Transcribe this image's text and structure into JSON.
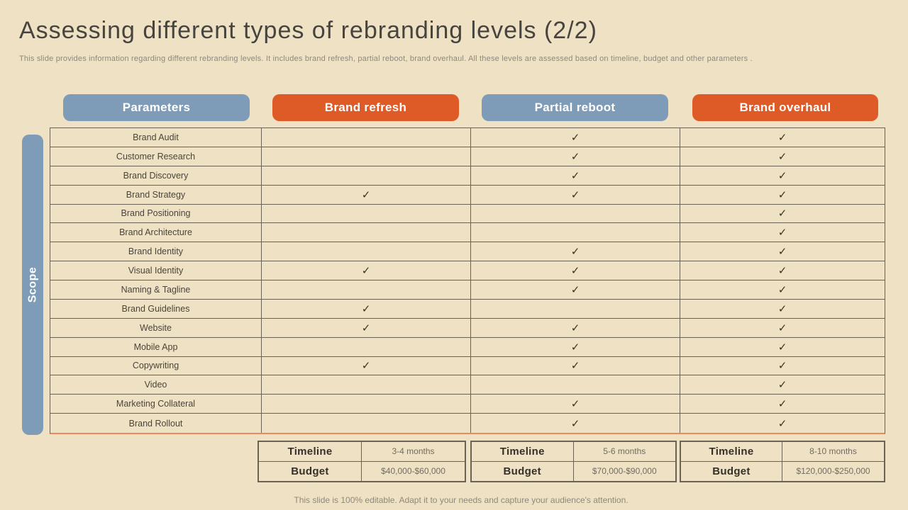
{
  "title": "Assessing different types of rebranding levels (2/2)",
  "subtitle": "This slide provides information regarding different rebranding levels. It includes brand refresh, partial reboot, brand overhaul. All these levels are assessed based on timeline,  budget and other parameters .",
  "scope_label": "Scope",
  "check_mark": "✓",
  "colors": {
    "background": "#EFE2C4",
    "blue_accent": "#7E9CB7",
    "orange_accent": "#DE5A26",
    "table_border": "#6B6455",
    "table_bottom_accent": "#E8895F",
    "title_text": "#474440",
    "muted_text": "#8E887B",
    "check_color": "#3B3223"
  },
  "columns": [
    {
      "label": "Parameters",
      "variant": "blue"
    },
    {
      "label": "Brand refresh",
      "variant": "orange"
    },
    {
      "label": "Partial reboot",
      "variant": "blue"
    },
    {
      "label": "Brand overhaul",
      "variant": "orange"
    }
  ],
  "table": {
    "rows": [
      {
        "parameter": "Brand Audit",
        "brand_refresh": false,
        "partial_reboot": true,
        "brand_overhaul": true
      },
      {
        "parameter": "Customer Research",
        "brand_refresh": false,
        "partial_reboot": true,
        "brand_overhaul": true
      },
      {
        "parameter": "Brand Discovery",
        "brand_refresh": false,
        "partial_reboot": true,
        "brand_overhaul": true
      },
      {
        "parameter": "Brand Strategy",
        "brand_refresh": true,
        "partial_reboot": true,
        "brand_overhaul": true
      },
      {
        "parameter": "Brand Positioning",
        "brand_refresh": false,
        "partial_reboot": false,
        "brand_overhaul": true
      },
      {
        "parameter": "Brand Architecture",
        "brand_refresh": false,
        "partial_reboot": false,
        "brand_overhaul": true
      },
      {
        "parameter": "Brand Identity",
        "brand_refresh": false,
        "partial_reboot": true,
        "brand_overhaul": true
      },
      {
        "parameter": "Visual Identity",
        "brand_refresh": true,
        "partial_reboot": true,
        "brand_overhaul": true
      },
      {
        "parameter": "Naming & Tagline",
        "brand_refresh": false,
        "partial_reboot": true,
        "brand_overhaul": true
      },
      {
        "parameter": "Brand Guidelines",
        "brand_refresh": true,
        "partial_reboot": false,
        "brand_overhaul": true
      },
      {
        "parameter": "Website",
        "brand_refresh": true,
        "partial_reboot": true,
        "brand_overhaul": true
      },
      {
        "parameter": "Mobile App",
        "brand_refresh": false,
        "partial_reboot": true,
        "brand_overhaul": true
      },
      {
        "parameter": "Copywriting",
        "brand_refresh": true,
        "partial_reboot": true,
        "brand_overhaul": true
      },
      {
        "parameter": "Video",
        "brand_refresh": false,
        "partial_reboot": false,
        "brand_overhaul": true
      },
      {
        "parameter": "Marketing Collateral",
        "brand_refresh": false,
        "partial_reboot": true,
        "brand_overhaul": true
      },
      {
        "parameter": "Brand Rollout",
        "brand_refresh": false,
        "partial_reboot": true,
        "brand_overhaul": true
      }
    ]
  },
  "summaries": [
    {
      "timeline_label": "Timeline",
      "timeline_value": "3-4 months",
      "budget_label": "Budget",
      "budget_value": "$40,000-$60,000"
    },
    {
      "timeline_label": "Timeline",
      "timeline_value": "5-6 months",
      "budget_label": "Budget",
      "budget_value": "$70,000-$90,000"
    },
    {
      "timeline_label": "Timeline",
      "timeline_value": "8-10 months",
      "budget_label": "Budget",
      "budget_value": "$120,000-$250,000"
    }
  ],
  "footer": "This slide is 100% editable. Adapt it to your needs and capture your audience's attention."
}
